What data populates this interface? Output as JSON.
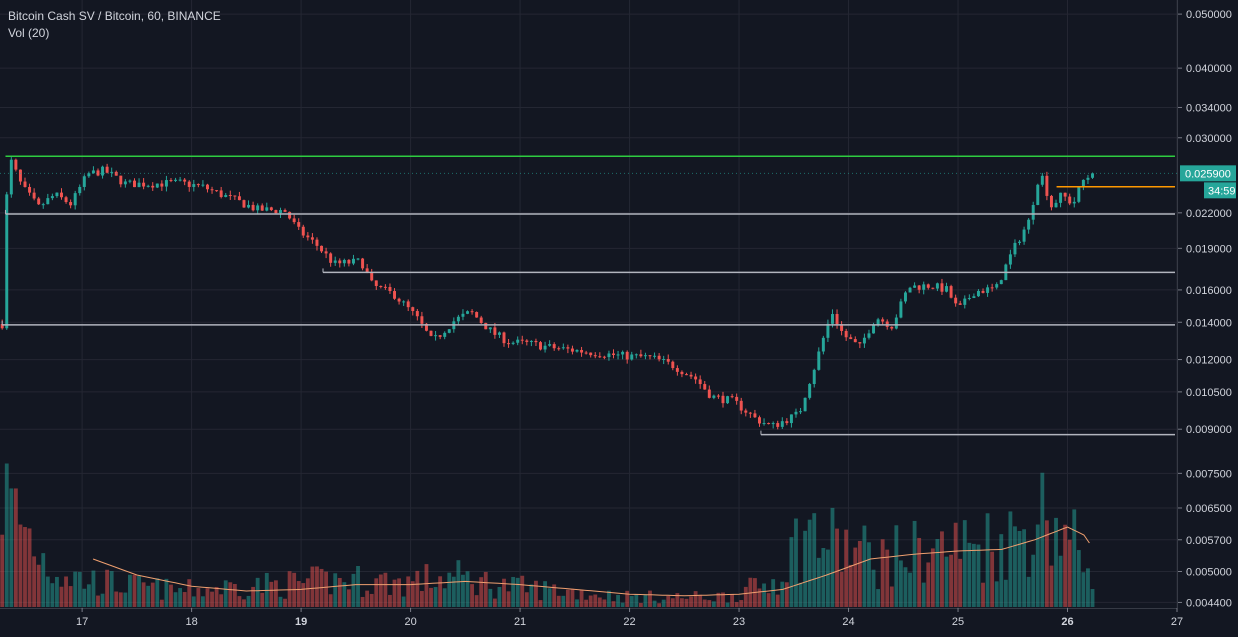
{
  "header": {
    "title": "Bitcoin Cash SV / Bitcoin, 60, BINANCE",
    "volume_label": "Vol (20)"
  },
  "price_badge": {
    "value": "0.025900",
    "countdown": "34:59"
  },
  "colors": {
    "background": "#131722",
    "up": "#26a69a",
    "down": "#ef5350",
    "resistance_line": "#2ecc40",
    "support_line": "#b2b5be",
    "orange_line": "#ff9800",
    "vol_ma": "#f0a070",
    "text": "#d1d4dc"
  },
  "chart_data": {
    "type": "candlestick",
    "title": "Bitcoin Cash SV / Bitcoin, 60, BINANCE",
    "x_tick_labels": [
      "17",
      "18",
      "19",
      "20",
      "21",
      "22",
      "23",
      "24",
      "25",
      "26",
      "27"
    ],
    "x_tick_days": [
      17,
      18,
      19,
      20,
      21,
      22,
      23,
      24,
      25,
      26,
      27
    ],
    "bold_x_labels": [
      "19",
      "26"
    ],
    "xlim": [
      16.25,
      27.0
    ],
    "y_scale": "log",
    "y_tick_labels": [
      "0.050000",
      "0.040000",
      "0.034000",
      "0.030000",
      "0.022000",
      "0.019000",
      "0.016000",
      "0.014000",
      "0.012000",
      "0.010500",
      "0.009000",
      "0.007500",
      "0.006500",
      "0.005700",
      "0.005000",
      "0.004400"
    ],
    "ylim": [
      0.0043,
      0.053
    ],
    "grid": true,
    "price_anchors": [
      [
        16.27,
        0.0139
      ],
      [
        16.33,
        0.0278
      ],
      [
        16.45,
        0.0245
      ],
      [
        16.6,
        0.0225
      ],
      [
        16.75,
        0.0237
      ],
      [
        16.9,
        0.0228
      ],
      [
        17.05,
        0.0258
      ],
      [
        17.2,
        0.0262
      ],
      [
        17.4,
        0.0248
      ],
      [
        17.6,
        0.0248
      ],
      [
        17.9,
        0.0249
      ],
      [
        18.1,
        0.0245
      ],
      [
        18.3,
        0.0236
      ],
      [
        18.6,
        0.0223
      ],
      [
        18.85,
        0.0222
      ],
      [
        18.97,
        0.0205
      ],
      [
        19.15,
        0.0192
      ],
      [
        19.3,
        0.0178
      ],
      [
        19.55,
        0.018
      ],
      [
        19.65,
        0.0163
      ],
      [
        19.85,
        0.0157
      ],
      [
        20.05,
        0.0143
      ],
      [
        20.2,
        0.0129
      ],
      [
        20.4,
        0.0141
      ],
      [
        20.55,
        0.0146
      ],
      [
        20.75,
        0.0134
      ],
      [
        20.9,
        0.0129
      ],
      [
        21.1,
        0.0128
      ],
      [
        21.3,
        0.0126
      ],
      [
        21.6,
        0.0124
      ],
      [
        21.9,
        0.0122
      ],
      [
        22.2,
        0.0121
      ],
      [
        22.4,
        0.0117
      ],
      [
        22.6,
        0.0111
      ],
      [
        22.75,
        0.0103
      ],
      [
        22.95,
        0.0101
      ],
      [
        23.15,
        0.0094
      ],
      [
        23.3,
        0.0091
      ],
      [
        23.55,
        0.0096
      ],
      [
        23.7,
        0.0118
      ],
      [
        23.85,
        0.0146
      ],
      [
        23.95,
        0.0133
      ],
      [
        24.1,
        0.0126
      ],
      [
        24.25,
        0.0143
      ],
      [
        24.4,
        0.0138
      ],
      [
        24.55,
        0.0162
      ],
      [
        24.75,
        0.0163
      ],
      [
        24.9,
        0.016
      ],
      [
        25.0,
        0.0147
      ],
      [
        25.15,
        0.0159
      ],
      [
        25.35,
        0.0161
      ],
      [
        25.5,
        0.0188
      ],
      [
        25.65,
        0.0213
      ],
      [
        25.75,
        0.0262
      ],
      [
        25.85,
        0.0226
      ],
      [
        25.95,
        0.0237
      ],
      [
        26.05,
        0.0228
      ],
      [
        26.15,
        0.0253
      ],
      [
        26.25,
        0.0259
      ]
    ],
    "horizontal_lines": [
      {
        "name": "resistance",
        "price": 0.0278,
        "from_day": 16.3,
        "to_day": 26.99,
        "color": "#2ecc40"
      },
      {
        "name": "support-022",
        "price": 0.0219,
        "from_day": 16.3,
        "to_day": 26.99,
        "color": "#b2b5be"
      },
      {
        "name": "support-017",
        "price": 0.0172,
        "from_day": 19.2,
        "to_day": 26.99,
        "color": "#b2b5be"
      },
      {
        "name": "support-014",
        "price": 0.01385,
        "from_day": 16.27,
        "to_day": 26.99,
        "color": "#b2b5be"
      },
      {
        "name": "support-009",
        "price": 0.0088,
        "from_day": 23.2,
        "to_day": 26.99,
        "color": "#b2b5be"
      },
      {
        "name": "orange-level",
        "price": 0.0245,
        "from_day": 25.9,
        "to_day": 26.99,
        "color": "#ff9800"
      }
    ],
    "current_price": 0.0259,
    "volume": {
      "label": "Vol (20)",
      "relative_anchors": [
        [
          16.27,
          0.85
        ],
        [
          16.5,
          0.55
        ],
        [
          16.7,
          0.3
        ],
        [
          17.0,
          0.2
        ],
        [
          17.4,
          0.16
        ],
        [
          17.9,
          0.12
        ],
        [
          18.4,
          0.15
        ],
        [
          18.9,
          0.17
        ],
        [
          19.4,
          0.2
        ],
        [
          19.9,
          0.18
        ],
        [
          20.4,
          0.22
        ],
        [
          20.9,
          0.15
        ],
        [
          21.4,
          0.12
        ],
        [
          21.9,
          0.08
        ],
        [
          22.4,
          0.07
        ],
        [
          22.9,
          0.08
        ],
        [
          23.3,
          0.18
        ],
        [
          23.6,
          0.55
        ],
        [
          23.9,
          0.45
        ],
        [
          24.3,
          0.35
        ],
        [
          24.7,
          0.42
        ],
        [
          25.1,
          0.45
        ],
        [
          25.5,
          0.5
        ],
        [
          25.8,
          0.7
        ],
        [
          26.0,
          0.5
        ],
        [
          26.25,
          0.3
        ]
      ],
      "ma_relative_anchors": [
        [
          17.1,
          0.3
        ],
        [
          17.5,
          0.2
        ],
        [
          18.0,
          0.13
        ],
        [
          18.5,
          0.1
        ],
        [
          19.0,
          0.11
        ],
        [
          19.5,
          0.14
        ],
        [
          20.0,
          0.14
        ],
        [
          20.5,
          0.16
        ],
        [
          21.0,
          0.14
        ],
        [
          21.5,
          0.11
        ],
        [
          22.0,
          0.08
        ],
        [
          22.5,
          0.07
        ],
        [
          23.0,
          0.08
        ],
        [
          23.4,
          0.11
        ],
        [
          23.8,
          0.2
        ],
        [
          24.2,
          0.3
        ],
        [
          24.6,
          0.33
        ],
        [
          25.0,
          0.35
        ],
        [
          25.4,
          0.36
        ],
        [
          25.7,
          0.42
        ],
        [
          26.0,
          0.5
        ],
        [
          26.15,
          0.45
        ],
        [
          26.25,
          0.35
        ]
      ]
    }
  }
}
